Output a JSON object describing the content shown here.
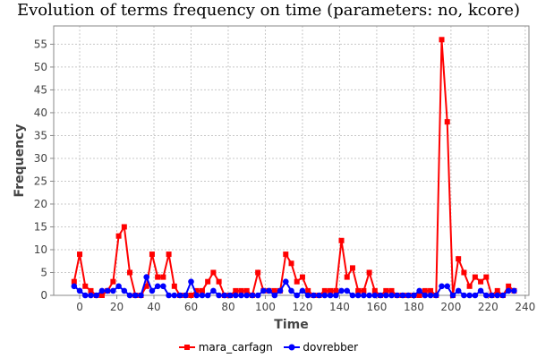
{
  "chart_data": {
    "type": "line",
    "title": "Evolution of terms frequency on time (parameters: no, kcore)",
    "xlabel": "Time",
    "ylabel": "Frequency",
    "xlim": [
      -14,
      242
    ],
    "ylim": [
      0,
      59
    ],
    "xticks": [
      0,
      20,
      40,
      60,
      80,
      100,
      120,
      140,
      160,
      180,
      200,
      220,
      240
    ],
    "yticks": [
      0,
      5,
      10,
      15,
      20,
      25,
      30,
      35,
      40,
      45,
      50,
      55
    ],
    "grid": true,
    "legend_position": "bottom",
    "series": [
      {
        "name": "mara_carfagn",
        "color": "#ff0000",
        "marker": "square",
        "x": [
          -3,
          0,
          3,
          6,
          9,
          12,
          15,
          18,
          21,
          24,
          27,
          30,
          33,
          36,
          39,
          42,
          45,
          48,
          51,
          54,
          57,
          60,
          63,
          66,
          69,
          72,
          75,
          78,
          81,
          84,
          87,
          90,
          93,
          96,
          99,
          102,
          105,
          108,
          111,
          114,
          117,
          120,
          123,
          126,
          129,
          132,
          135,
          138,
          141,
          144,
          147,
          150,
          153,
          156,
          159,
          162,
          165,
          168,
          171,
          174,
          177,
          180,
          183,
          186,
          189,
          192,
          195,
          198,
          201,
          204,
          207,
          210,
          213,
          216,
          219,
          222,
          225,
          228,
          231,
          234
        ],
        "y": [
          3,
          9,
          2,
          1,
          0,
          0,
          1,
          3,
          13,
          15,
          5,
          0,
          0,
          2,
          9,
          4,
          4,
          9,
          2,
          0,
          0,
          0,
          1,
          1,
          3,
          5,
          3,
          0,
          0,
          1,
          1,
          1,
          0,
          5,
          1,
          1,
          1,
          1,
          9,
          7,
          3,
          4,
          1,
          0,
          0,
          1,
          1,
          1,
          12,
          4,
          6,
          1,
          1,
          5,
          1,
          0,
          1,
          1,
          0,
          0,
          0,
          0,
          0,
          1,
          1,
          0,
          56,
          38,
          0,
          8,
          5,
          2,
          4,
          3,
          4,
          0,
          1,
          0,
          2,
          1
        ]
      },
      {
        "name": "dovrebber",
        "color": "#0000ff",
        "marker": "circle",
        "x": [
          -3,
          0,
          3,
          6,
          9,
          12,
          15,
          18,
          21,
          24,
          27,
          30,
          33,
          36,
          39,
          42,
          45,
          48,
          51,
          54,
          57,
          60,
          63,
          66,
          69,
          72,
          75,
          78,
          81,
          84,
          87,
          90,
          93,
          96,
          99,
          102,
          105,
          108,
          111,
          114,
          117,
          120,
          123,
          126,
          129,
          132,
          135,
          138,
          141,
          144,
          147,
          150,
          153,
          156,
          159,
          162,
          165,
          168,
          171,
          174,
          177,
          180,
          183,
          186,
          189,
          192,
          195,
          198,
          201,
          204,
          207,
          210,
          213,
          216,
          219,
          222,
          225,
          228,
          231,
          234
        ],
        "y": [
          2,
          1,
          0,
          0,
          0,
          1,
          1,
          1,
          2,
          1,
          0,
          0,
          0,
          4,
          1,
          2,
          2,
          0,
          0,
          0,
          0,
          3,
          0,
          0,
          0,
          1,
          0,
          0,
          0,
          0,
          0,
          0,
          0,
          0,
          1,
          1,
          0,
          1,
          3,
          1,
          0,
          1,
          0,
          0,
          0,
          0,
          0,
          0,
          1,
          1,
          0,
          0,
          0,
          0,
          0,
          0,
          0,
          0,
          0,
          0,
          0,
          0,
          1,
          0,
          0,
          0,
          2,
          2,
          0,
          1,
          0,
          0,
          0,
          1,
          0,
          0,
          0,
          0,
          1,
          1
        ]
      }
    ]
  }
}
